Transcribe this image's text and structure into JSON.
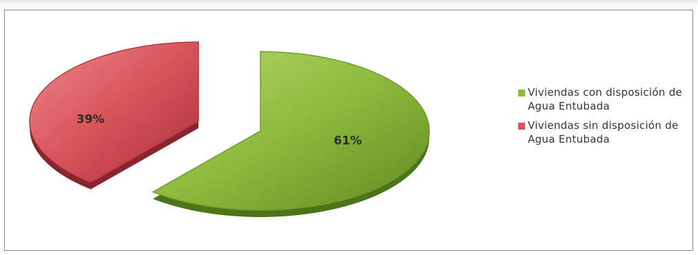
{
  "chart_data": {
    "type": "pie",
    "title": "",
    "series": [
      {
        "name": "Viviendas con disposición de Agua Entubada",
        "value": 61,
        "label": "61%",
        "color": "#8cba3c"
      },
      {
        "name": "Viviendas sin disposición de Agua Entubada",
        "value": 39,
        "label": "39%",
        "color": "#d8535a"
      }
    ],
    "legend_position": "right",
    "style": "3d-exploded"
  }
}
